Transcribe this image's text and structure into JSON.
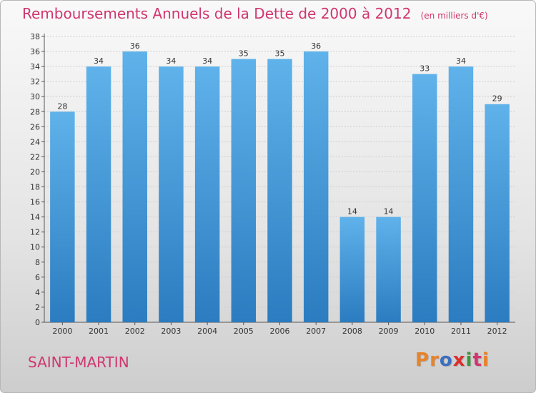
{
  "header": {
    "title": "Remboursements Annuels de la Dette de 2000 à 2012",
    "subtitle": "(en milliers d'€)"
  },
  "footer": {
    "commune": "SAINT-MARTIN",
    "logo_text": "Proxiti",
    "logo_colors": [
      "#e8832a",
      "#e8832a",
      "#3b6fc0",
      "#d92f2f",
      "#3a9a3a",
      "#d0366e",
      "#e8832a"
    ]
  },
  "colors": {
    "title": "#d0366e",
    "bar_top": "#5fb2ea",
    "bar_bottom": "#2b7cc0",
    "grid": "#cfcfcf"
  },
  "chart_data": {
    "type": "bar",
    "title": "Remboursements Annuels de la Dette de 2000 à 2012",
    "subtitle": "(en milliers d'€)",
    "categories": [
      "2000",
      "2001",
      "2002",
      "2003",
      "2004",
      "2005",
      "2006",
      "2007",
      "2008",
      "2009",
      "2010",
      "2011",
      "2012"
    ],
    "values": [
      28,
      34,
      36,
      34,
      34,
      35,
      35,
      36,
      14,
      14,
      33,
      34,
      29
    ],
    "ylim": [
      0,
      38
    ],
    "yticks": [
      0,
      2,
      4,
      6,
      8,
      10,
      12,
      14,
      16,
      18,
      20,
      22,
      24,
      26,
      28,
      30,
      32,
      34,
      36,
      38
    ],
    "grid": true,
    "data_labels": true
  }
}
